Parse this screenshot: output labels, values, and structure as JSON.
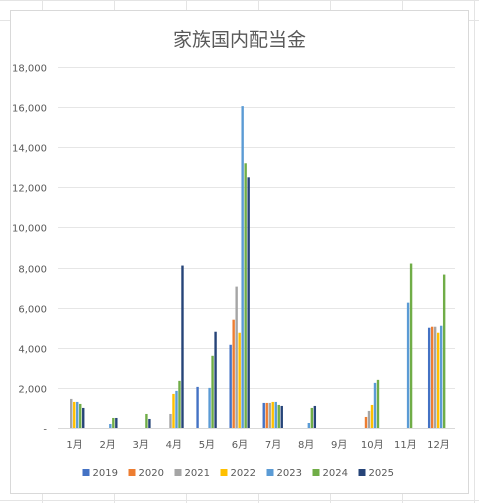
{
  "chart_data": {
    "type": "bar",
    "title": "家族国内配当金",
    "xlabel": "",
    "ylabel": "",
    "ylim": [
      0,
      18000
    ],
    "yticks": [
      0,
      2000,
      4000,
      6000,
      8000,
      10000,
      12000,
      14000,
      16000,
      18000
    ],
    "ytick_labels": [
      "-",
      "2,000",
      "4,000",
      "6,000",
      "8,000",
      "10,000",
      "12,000",
      "14,000",
      "16,000",
      "18,000"
    ],
    "grid": true,
    "legend_position": "bottom",
    "categories": [
      "1月",
      "2月",
      "3月",
      "4月",
      "5月",
      "6月",
      "7月",
      "8月",
      "9月",
      "10月",
      "11月",
      "12月"
    ],
    "series": [
      {
        "name": "2019",
        "color": "#4472C4",
        "values": [
          0,
          0,
          0,
          0,
          2050,
          4150,
          1250,
          0,
          0,
          0,
          0,
          5000
        ]
      },
      {
        "name": "2020",
        "color": "#ED7D31",
        "values": [
          0,
          0,
          0,
          0,
          0,
          5400,
          1250,
          0,
          0,
          550,
          0,
          5050
        ]
      },
      {
        "name": "2021",
        "color": "#A5A5A5",
        "values": [
          1450,
          0,
          0,
          700,
          0,
          7050,
          1250,
          0,
          0,
          850,
          0,
          5050
        ]
      },
      {
        "name": "2022",
        "color": "#FFC000",
        "values": [
          1300,
          0,
          0,
          1700,
          0,
          4750,
          1300,
          0,
          0,
          1150,
          0,
          4750
        ]
      },
      {
        "name": "2023",
        "color": "#5B9BD5",
        "values": [
          1300,
          200,
          0,
          1850,
          2000,
          16050,
          1300,
          250,
          0,
          2250,
          6250,
          5100
        ]
      },
      {
        "name": "2024",
        "color": "#70AD47",
        "values": [
          1200,
          500,
          700,
          2350,
          3600,
          13200,
          1150,
          1000,
          0,
          2400,
          8200,
          7650
        ]
      },
      {
        "name": "2025",
        "color": "#264478",
        "values": [
          1000,
          500,
          450,
          8100,
          4800,
          12500,
          1100,
          1100,
          0,
          0,
          0,
          0
        ]
      }
    ]
  }
}
